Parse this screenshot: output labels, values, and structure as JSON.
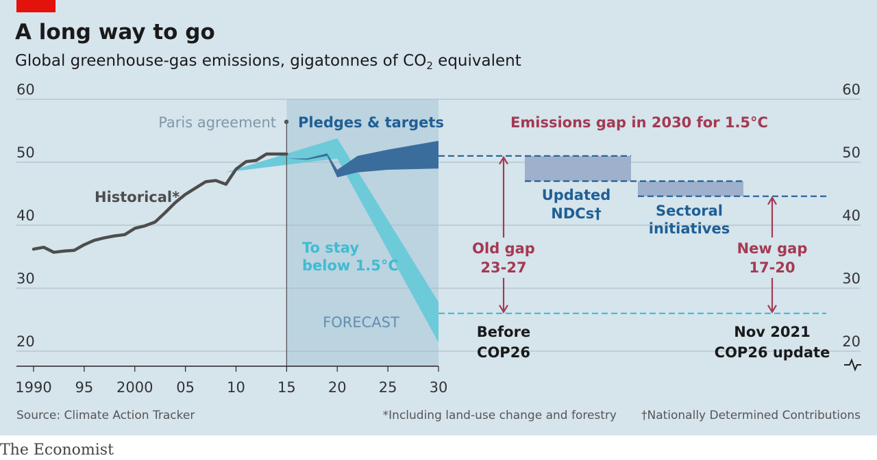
{
  "title": "A long way to go",
  "subtitle_pre": "Global greenhouse-gas emissions, gigatonnes of CO",
  "subtitle_sub": "2",
  "subtitle_post": " equivalent",
  "source": "Source: Climate Action Tracker",
  "footnote_star": "*Including land-use change and forestry",
  "footnote_dagger": "†Nationally Determined Contributions",
  "brand": "The Economist",
  "colors": {
    "background": "#d6e4ec",
    "historical": "#4d4d4d",
    "forecast_shade": "#bcd3e0",
    "pledges": "#3a6d9c",
    "target": "#6ccad9",
    "gap_bar": "#9eb0cc",
    "gap_red": "#a33a52",
    "pledge_blue": "#1f5f94",
    "grid": "#a6b8c4"
  },
  "chart_data": {
    "type": "line",
    "xlim": [
      1989,
      2030
    ],
    "ylim": [
      18,
      60
    ],
    "y_ticks": [
      20,
      30,
      40,
      50,
      60
    ],
    "y_tick_labels": [
      "20",
      "30",
      "40",
      "50",
      "60"
    ],
    "x_ticks": [
      1990,
      1995,
      2000,
      2005,
      2010,
      2015,
      2020,
      2025,
      2030
    ],
    "x_tick_labels": [
      "1990",
      "95",
      "2000",
      "05",
      "10",
      "15",
      "20",
      "25",
      "30"
    ],
    "series": [
      {
        "name": "Historical*",
        "x": [
          1990,
          1991,
          1992,
          1993,
          1994,
          1995,
          1996,
          1997,
          1998,
          1999,
          2000,
          2001,
          2002,
          2003,
          2004,
          2005,
          2006,
          2007,
          2008,
          2009,
          2010,
          2011,
          2012,
          2013,
          2014,
          2015
        ],
        "y": [
          36.2,
          36.5,
          35.7,
          35.9,
          36.0,
          36.9,
          37.6,
          38.0,
          38.3,
          38.5,
          39.5,
          39.9,
          40.5,
          42.0,
          43.6,
          44.9,
          45.9,
          46.9,
          47.1,
          46.5,
          48.9,
          50.1,
          50.3,
          51.3,
          51.3,
          51.3
        ]
      }
    ],
    "pledges_band": {
      "x": [
        2015,
        2017,
        2019,
        2020,
        2022,
        2025,
        2030
      ],
      "upper": [
        50.6,
        50.6,
        51.4,
        48.8,
        51.0,
        52.0,
        53.4
      ],
      "lower": [
        50.6,
        50.4,
        51.0,
        47.6,
        48.4,
        48.8,
        49.0
      ]
    },
    "target_band": {
      "x": [
        2009,
        2020,
        2030
      ],
      "upper": [
        48.4,
        53.8,
        27.8
      ],
      "lower": [
        48.4,
        50.6,
        21.4
      ]
    },
    "forecast_start": 2015,
    "paris_agreement_year": 2015,
    "gap_levels": {
      "before_cop26": 51.0,
      "updated_ndcs": 47.0,
      "sectoral_initiatives": 44.6,
      "target_1_5": 26.0
    },
    "annotations": {
      "paris": "Paris agreement",
      "pledges": "Pledges & targets",
      "gap_title": "Emissions gap in 2030 for 1.5°C",
      "historical": "Historical*",
      "stay_1": "To stay",
      "stay_2": "below 1.5°C",
      "forecast": "FORECAST",
      "updated_1": "Updated",
      "updated_2": "NDCs†",
      "sectoral_1": "Sectoral",
      "sectoral_2": "initiatives",
      "old_gap_1": "Old gap",
      "old_gap_2": "23-27",
      "new_gap_1": "New gap",
      "new_gap_2": "17-20",
      "before_1": "Before",
      "before_2": "COP26",
      "nov_1": "Nov 2021",
      "nov_2": "COP26 update"
    }
  }
}
